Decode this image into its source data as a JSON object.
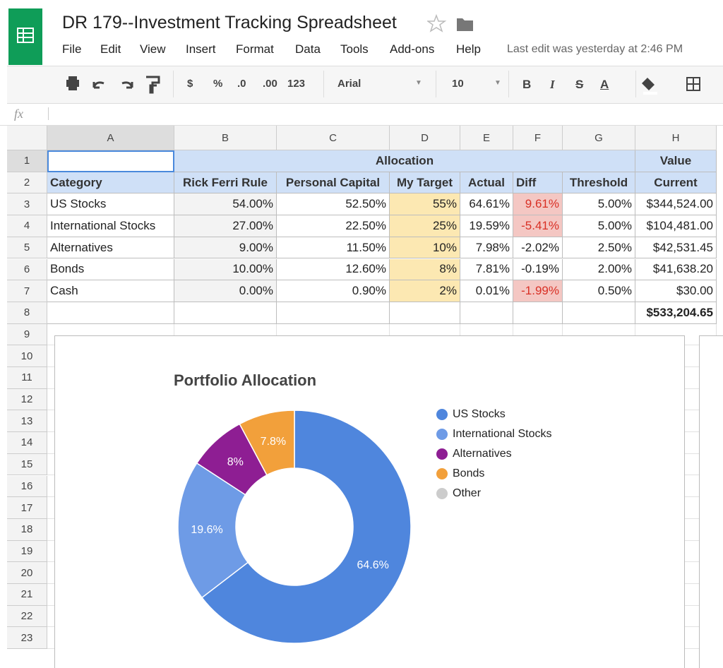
{
  "app": {
    "title": "DR 179--Investment Tracking Spreadsheet",
    "menu": [
      "File",
      "Edit",
      "View",
      "Insert",
      "Format",
      "Data",
      "Tools",
      "Add-ons",
      "Help"
    ],
    "last_edit": "Last edit was yesterday at 2:46 PM"
  },
  "toolbar": {
    "formats": [
      "$",
      "%",
      ".0",
      ".00",
      "123"
    ],
    "font": "Arial",
    "size": "10",
    "styles": [
      "B",
      "I",
      "S",
      "A"
    ]
  },
  "formula_bar": {
    "label": "fx"
  },
  "sheet": {
    "columns": [
      "A",
      "B",
      "C",
      "D",
      "E",
      "F",
      "G",
      "H"
    ],
    "rows": [
      1,
      2,
      3,
      4,
      5,
      6,
      7,
      8,
      9,
      10,
      11,
      12,
      13,
      14,
      15,
      16,
      17,
      18,
      19,
      20,
      21,
      22,
      23
    ],
    "group_headers": [
      "Allocation",
      "Value"
    ],
    "header": [
      "Category",
      "Rick Ferri Rule",
      "Personal Capital",
      "My Target",
      "Actual",
      "Diff",
      "Threshold",
      "Current"
    ],
    "data": [
      [
        "US Stocks",
        "54.00%",
        "52.50%",
        "55%",
        "64.61%",
        "9.61%",
        "5.00%",
        "$344,524.00"
      ],
      [
        "International Stocks",
        "27.00%",
        "22.50%",
        "25%",
        "19.59%",
        "-5.41%",
        "5.00%",
        "$104,481.00"
      ],
      [
        "Alternatives",
        "9.00%",
        "11.50%",
        "10%",
        "7.98%",
        "-2.02%",
        "2.50%",
        "$42,531.45"
      ],
      [
        "Bonds",
        "10.00%",
        "12.60%",
        "8%",
        "7.81%",
        "-0.19%",
        "2.00%",
        "$41,638.20"
      ],
      [
        "Cash",
        "0.00%",
        "0.90%",
        "2%",
        "0.01%",
        "-1.99%",
        "0.50%",
        "$30.00"
      ]
    ],
    "total": "$533,204.65"
  },
  "chart_data": {
    "type": "donut",
    "title": "Portfolio Allocation",
    "categories": [
      "US Stocks",
      "International Stocks",
      "Alternatives",
      "Bonds",
      "Other"
    ],
    "series": [
      {
        "name": "Allocation",
        "colors": [
          "#4f86dd",
          "#6e9be6",
          "#8e1e93",
          "#f2a03b",
          "#cccccc"
        ],
        "values": [
          64.6,
          19.6,
          8,
          7.8,
          0
        ],
        "value_labels": [
          "64.6%",
          "19.6%",
          "8%",
          "7.8%",
          null
        ]
      }
    ],
    "legend": "right"
  }
}
